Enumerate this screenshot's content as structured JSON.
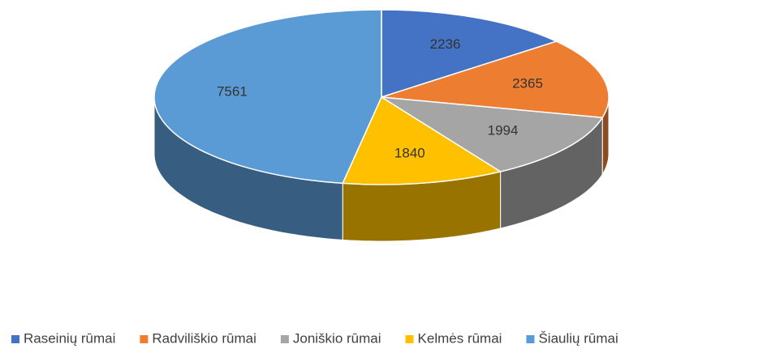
{
  "chart_data": {
    "type": "pie3d",
    "categories": [
      "Raseinių rūmai",
      "Radviliškio rūmai",
      "Joniškio rūmai",
      "Kelmės rūmai",
      "Šiaulių rūmai"
    ],
    "values": [
      2236,
      2365,
      1994,
      1840,
      7561
    ],
    "colors": [
      "#4472c4",
      "#ed7d31",
      "#a5a5a5",
      "#ffc000",
      "#5b9bd5"
    ],
    "legend": "bottom"
  }
}
